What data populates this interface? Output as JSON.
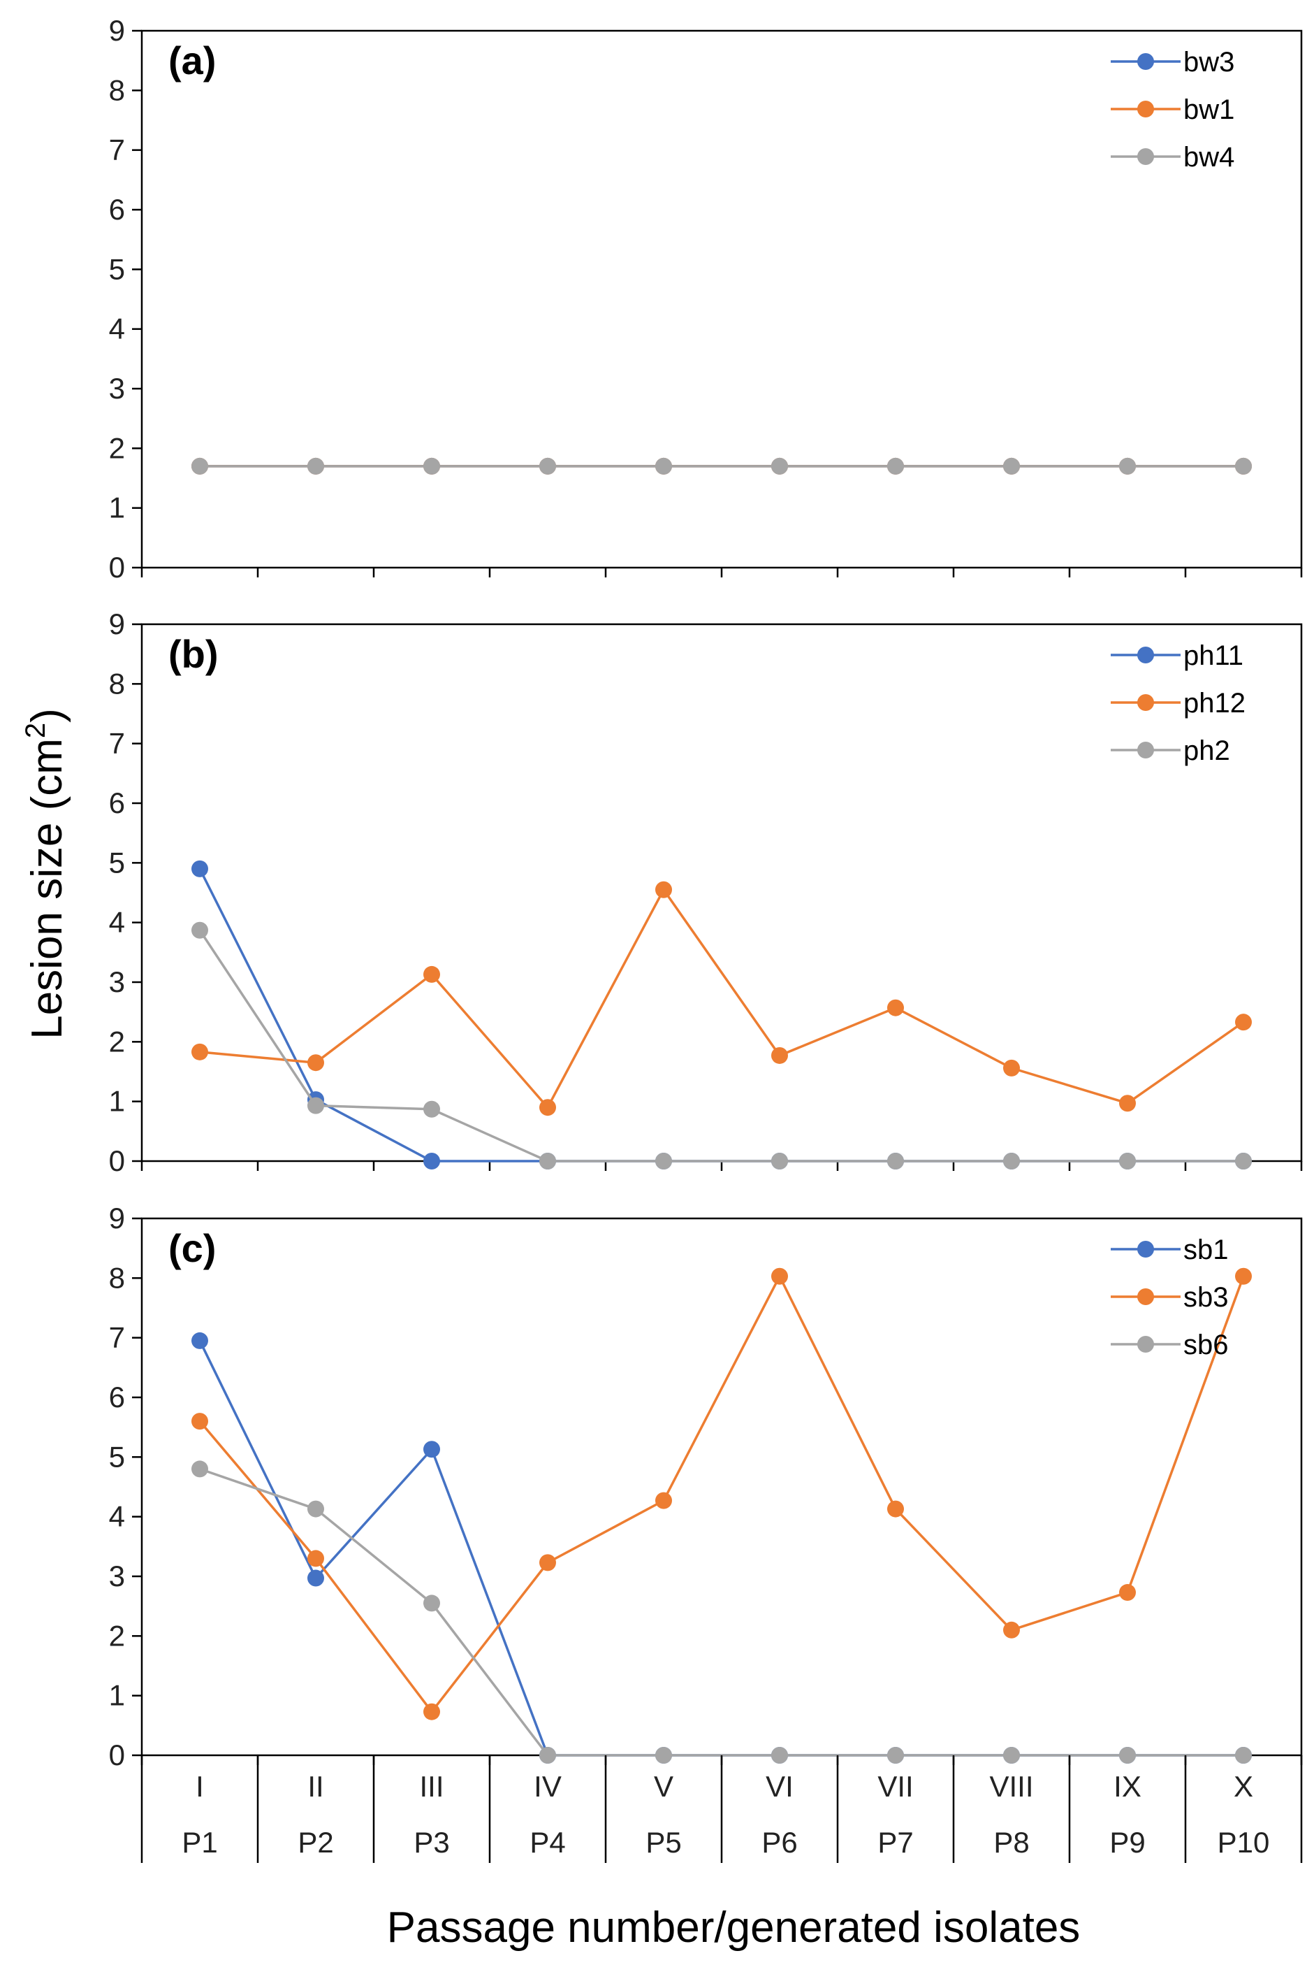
{
  "colors": {
    "blue": "#4472c4",
    "orange": "#ed7d31",
    "gray": "#a5a5a5",
    "axis": "#000000"
  },
  "y_axis": {
    "label_prefix": "Lesion size (cm",
    "label_sup": "2",
    "label_suffix": ")"
  },
  "x_axis": {
    "label": "Passage number/generated isolates",
    "row1": [
      "I",
      "II",
      "III",
      "IV",
      "V",
      "VI",
      "VII",
      "VIII",
      "IX",
      "X"
    ],
    "row2": [
      "P1",
      "P2",
      "P3",
      "P4",
      "P5",
      "P6",
      "P7",
      "P8",
      "P9",
      "P10"
    ]
  },
  "chart_data": [
    {
      "type": "line",
      "panel": "(a)",
      "categories": [
        "I",
        "II",
        "III",
        "IV",
        "V",
        "VI",
        "VII",
        "VIII",
        "IX",
        "X"
      ],
      "ylim": [
        0,
        9
      ],
      "yticks": [
        0,
        1,
        2,
        3,
        4,
        5,
        6,
        7,
        8,
        9
      ],
      "legend_position": "top-right",
      "series": [
        {
          "name": "bw3",
          "color": "#4472c4",
          "values": [
            1.7,
            1.7,
            1.7,
            1.7,
            1.7,
            1.7,
            1.7,
            1.7,
            1.7,
            1.7
          ]
        },
        {
          "name": "bw1",
          "color": "#ed7d31",
          "values": [
            1.7,
            1.7,
            1.7,
            1.7,
            1.7,
            1.7,
            1.7,
            1.7,
            1.7,
            1.7
          ]
        },
        {
          "name": "bw4",
          "color": "#a5a5a5",
          "values": [
            1.7,
            1.7,
            1.7,
            1.7,
            1.7,
            1.7,
            1.7,
            1.7,
            1.7,
            1.7
          ]
        }
      ]
    },
    {
      "type": "line",
      "panel": "(b)",
      "categories": [
        "I",
        "II",
        "III",
        "IV",
        "V",
        "VI",
        "VII",
        "VIII",
        "IX",
        "X"
      ],
      "ylim": [
        0,
        9
      ],
      "yticks": [
        0,
        1,
        2,
        3,
        4,
        5,
        6,
        7,
        8,
        9
      ],
      "legend_position": "top-right",
      "series": [
        {
          "name": "ph11",
          "color": "#4472c4",
          "values": [
            4.9,
            1.03,
            0,
            0,
            0,
            0,
            0,
            0,
            0,
            0
          ]
        },
        {
          "name": "ph12",
          "color": "#ed7d31",
          "values": [
            1.83,
            1.65,
            3.13,
            0.9,
            4.55,
            1.77,
            2.57,
            1.56,
            0.97,
            2.33
          ]
        },
        {
          "name": "ph2",
          "color": "#a5a5a5",
          "values": [
            3.87,
            0.93,
            0.87,
            0,
            0,
            0,
            0,
            0,
            0,
            0
          ]
        }
      ]
    },
    {
      "type": "line",
      "panel": "(c)",
      "categories": [
        "I",
        "II",
        "III",
        "IV",
        "V",
        "VI",
        "VII",
        "VIII",
        "IX",
        "X"
      ],
      "ylim": [
        0,
        9
      ],
      "yticks": [
        0,
        1,
        2,
        3,
        4,
        5,
        6,
        7,
        8,
        9
      ],
      "legend_position": "top-right",
      "series": [
        {
          "name": "sb1",
          "color": "#4472c4",
          "values": [
            6.95,
            2.97,
            5.13,
            0,
            0,
            0,
            0,
            0,
            0,
            0
          ]
        },
        {
          "name": "sb3",
          "color": "#ed7d31",
          "values": [
            5.6,
            3.3,
            0.73,
            3.23,
            4.27,
            8.03,
            4.13,
            2.1,
            2.73,
            8.03
          ]
        },
        {
          "name": "sb6",
          "color": "#a5a5a5",
          "values": [
            4.8,
            4.13,
            2.55,
            0,
            0,
            0,
            0,
            0,
            0,
            0
          ]
        }
      ]
    }
  ]
}
